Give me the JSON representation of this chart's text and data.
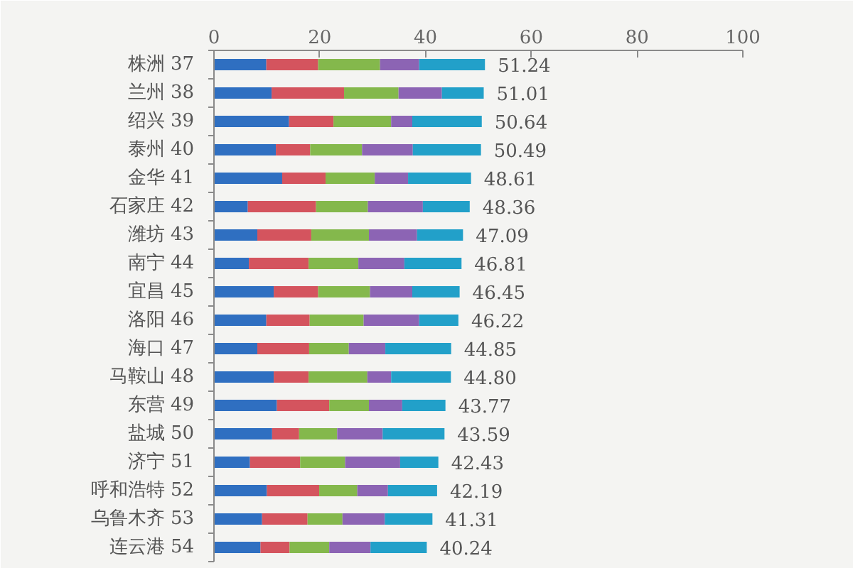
{
  "chart_data": {
    "type": "bar",
    "orientation": "horizontal",
    "stacked": true,
    "categories": [
      "株洲 37",
      "兰州 38",
      "绍兴 39",
      "泰州 40",
      "金华 41",
      "石家庄 42",
      "潍坊 43",
      "南宁 44",
      "宜昌 45",
      "洛阳 46",
      "海口 47",
      "马鞍山 48",
      "东营 49",
      "盐城 50",
      "济宁 51",
      "呼和浩特 52",
      "乌鲁木齐 53",
      "连云港 54"
    ],
    "series": [
      {
        "color": "#2f6fc1",
        "values": [
          9.9,
          10.9,
          14.2,
          11.7,
          12.9,
          6.4,
          8.2,
          6.6,
          11.3,
          9.9,
          8.2,
          11.3,
          11.9,
          11.0,
          6.8,
          10.0,
          9.1,
          8.8
        ]
      },
      {
        "color": "#d4545e",
        "values": [
          9.8,
          13.7,
          8.4,
          6.5,
          8.2,
          12.9,
          10.2,
          11.3,
          8.4,
          8.2,
          9.8,
          6.6,
          9.9,
          5.1,
          9.5,
          9.9,
          8.6,
          5.5
        ]
      },
      {
        "color": "#84b84c",
        "values": [
          11.7,
          10.3,
          10.9,
          9.8,
          9.3,
          9.8,
          10.9,
          9.4,
          9.8,
          10.2,
          7.5,
          11.1,
          7.5,
          7.2,
          8.5,
          7.2,
          6.6,
          7.5
        ]
      },
      {
        "color": "#8c64b4",
        "values": [
          7.4,
          8.2,
          4.0,
          9.6,
          6.3,
          10.4,
          9.1,
          8.7,
          8.0,
          10.5,
          6.9,
          4.5,
          6.3,
          8.6,
          10.4,
          5.8,
          8.0,
          7.8
        ]
      },
      {
        "color": "#22a0c9",
        "values": [
          12.44,
          7.91,
          13.14,
          12.89,
          11.91,
          8.86,
          8.69,
          10.81,
          8.95,
          7.42,
          12.45,
          11.3,
          8.17,
          11.69,
          7.23,
          9.29,
          9.01,
          10.64
        ]
      }
    ],
    "xlim": [
      0,
      100
    ],
    "xticks": [
      0,
      20,
      40,
      60,
      80,
      100
    ],
    "totals": [
      "51.24",
      "51.01",
      "50.64",
      "50.49",
      "48.61",
      "48.36",
      "47.09",
      "46.81",
      "46.45",
      "46.22",
      "44.85",
      "44.80",
      "43.77",
      "43.59",
      "42.43",
      "42.19",
      "41.31",
      "40.24"
    ]
  }
}
